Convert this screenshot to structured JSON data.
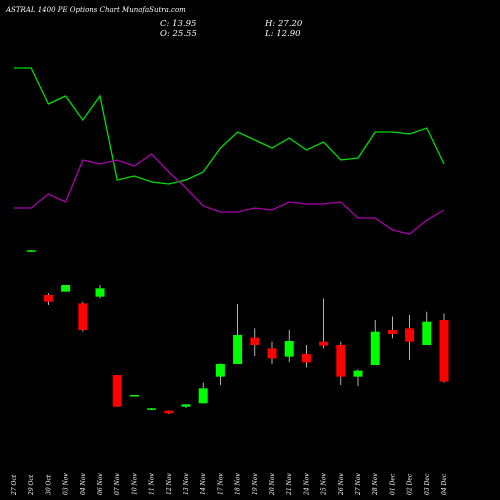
{
  "title": "ASTRAL 1400 PE Options Chart MunafaSutra.com",
  "ohlc": {
    "c": "C: 13.95",
    "h": "H: 27.20",
    "o": "O: 25.55",
    "l": "L: 12.90"
  },
  "colors": {
    "background": "#000000",
    "up": "#00ff00",
    "down": "#ff0000",
    "line_green": "#00dd00",
    "line_purple": "#aa00aa"
  },
  "chart_data": {
    "type": "candlestick",
    "categories": [
      "27 Oct",
      "29 Oct",
      "30 Oct",
      "03 Nov",
      "04 Nov",
      "06 Nov",
      "07 Nov",
      "10 Nov",
      "11 Nov",
      "12 Nov",
      "13 Nov",
      "14 Nov",
      "17 Nov",
      "18 Nov",
      "19 Nov",
      "20 Nov",
      "21 Nov",
      "24 Nov",
      "25 Nov",
      "26 Nov",
      "27 Nov",
      "28 Nov",
      "01 Dec",
      "02 Dec",
      "03 Dec",
      "04 Dec"
    ],
    "ohlc": [
      null,
      {
        "o": 66.8,
        "h": 67.0,
        "l": 66.5,
        "c": 66.9
      },
      {
        "o": 53.5,
        "h": 54.0,
        "l": 50.5,
        "c": 51.5
      },
      {
        "o": 54.5,
        "h": 56.5,
        "l": 54.5,
        "c": 56.5
      },
      {
        "o": 51.0,
        "h": 51.5,
        "l": 42.5,
        "c": 43.0
      },
      {
        "o": 53.0,
        "h": 56.5,
        "l": 52.5,
        "c": 55.5
      },
      {
        "o": 29.5,
        "h": 29.5,
        "l": 20.0,
        "c": 20.0
      },
      {
        "o": 23.5,
        "h": 23.5,
        "l": 23.2,
        "c": 23.5
      },
      {
        "o": 19.5,
        "h": 19.6,
        "l": 19.2,
        "c": 19.5
      },
      {
        "o": 18.8,
        "h": 18.8,
        "l": 17.8,
        "c": 18.0
      },
      {
        "o": 20.0,
        "h": 20.8,
        "l": 19.6,
        "c": 20.7
      },
      {
        "o": 21.0,
        "h": 27.2,
        "l": 21.0,
        "c": 25.5
      },
      {
        "o": 29.0,
        "h": 33.0,
        "l": 26.5,
        "c": 32.8
      },
      {
        "o": 32.8,
        "h": 50.8,
        "l": 32.8,
        "c": 41.5
      },
      {
        "o": 40.7,
        "h": 43.5,
        "l": 35.2,
        "c": 38.5
      },
      {
        "o": 37.5,
        "h": 39.5,
        "l": 32.8,
        "c": 34.5
      },
      {
        "o": 35.0,
        "h": 43.0,
        "l": 33.3,
        "c": 39.7
      },
      {
        "o": 35.8,
        "h": 38.5,
        "l": 31.8,
        "c": 33.3
      },
      {
        "o": 39.5,
        "h": 52.5,
        "l": 37.5,
        "c": 38.3
      },
      {
        "o": 38.5,
        "h": 39.5,
        "l": 26.5,
        "c": 29.0
      },
      {
        "o": 29.0,
        "h": 31.2,
        "l": 26.2,
        "c": 30.8
      },
      {
        "o": 32.5,
        "h": 46.0,
        "l": 32.5,
        "c": 42.5
      },
      {
        "o": 43.0,
        "h": 47.0,
        "l": 40.5,
        "c": 41.8
      },
      {
        "o": 43.5,
        "h": 47.5,
        "l": 34.0,
        "c": 39.5
      },
      {
        "o": 38.5,
        "h": 48.5,
        "l": 38.5,
        "c": 45.5
      },
      {
        "o": 46.0,
        "h": 48.0,
        "l": 27.2,
        "c": 27.5
      }
    ],
    "series": [
      {
        "values": [
          88,
          88,
          79,
          81,
          75,
          81,
          60,
          61,
          59.5,
          59,
          60,
          62,
          68,
          72,
          70,
          68,
          70.5,
          67.5,
          69.5,
          65,
          65.5,
          72,
          72,
          71.5,
          73,
          64
        ]
      },
      {
        "values": [
          53,
          53,
          56.5,
          54.5,
          65,
          64,
          65,
          63.5,
          66.5,
          62,
          58,
          53.5,
          52,
          52,
          53,
          52.5,
          54.5,
          54,
          54,
          54.5,
          50.5,
          50.5,
          47.5,
          46.5,
          50,
          52.5
        ]
      }
    ]
  }
}
